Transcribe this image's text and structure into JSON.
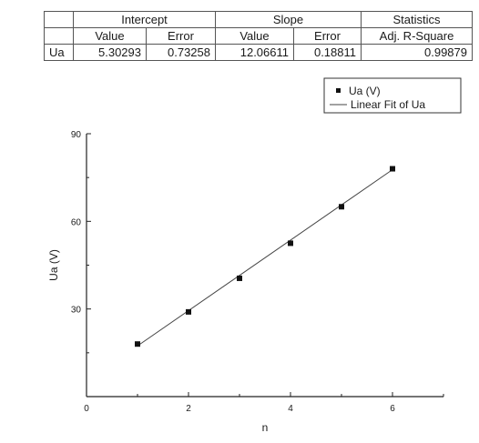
{
  "fit_table": {
    "group_headers": [
      "Intercept",
      "Slope",
      "Statistics"
    ],
    "sub_headers": [
      "Value",
      "Error",
      "Value",
      "Error",
      "Adj. R-Square"
    ],
    "rows": [
      {
        "label": "Ua",
        "cells": [
          "5.30293",
          "0.73258",
          "12.06611",
          "0.18811",
          "0.99879"
        ]
      }
    ]
  },
  "chart_data": {
    "type": "scatter",
    "xlabel": "n",
    "ylabel": "Ua (V)",
    "xlim": [
      0,
      7
    ],
    "ylim": [
      0,
      90
    ],
    "x_ticks": [
      "0",
      "2",
      "4",
      "6"
    ],
    "y_ticks": [
      "30",
      "60",
      "90"
    ],
    "grid": false,
    "legend_position": "top-right",
    "series": [
      {
        "name": "Ua (V)",
        "type": "scatter",
        "x": [
          1,
          2,
          3,
          4,
          5,
          6
        ],
        "y": [
          18,
          29,
          40.5,
          52.5,
          65,
          78
        ]
      },
      {
        "name": "Linear Fit of Ua",
        "type": "line",
        "intercept": 5.30293,
        "slope": 12.06611,
        "x_range": [
          1,
          6
        ]
      }
    ],
    "colors": {
      "points": "#111111",
      "fit_line": "#444444"
    }
  }
}
